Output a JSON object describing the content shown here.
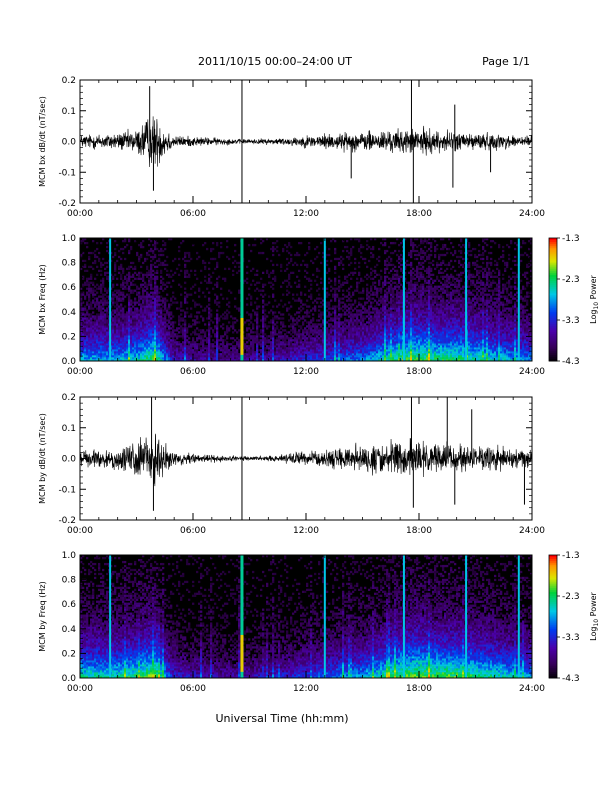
{
  "header": {
    "title": "2011/10/15  00:00–24:00 UT",
    "page": "Page 1/1"
  },
  "footer": {
    "xlabel": "Universal Time (hh:mm)"
  },
  "colors": {
    "trace": "#000000",
    "axis": "#000000",
    "background": "#ffffff"
  },
  "chart_data": [
    {
      "type": "line",
      "ylabel": "MCM bx dB/dt (nT/sec)",
      "x_tick_labels": [
        "00:00",
        "06:00",
        "12:00",
        "18:00",
        "24:00"
      ],
      "xlim_hours": [
        0,
        24
      ],
      "y_tick_labels": [
        "-0.2",
        "-0.1",
        "0.0",
        "0.1",
        "0.2"
      ],
      "ylim": [
        -0.2,
        0.2
      ],
      "x_unit": "hours UT",
      "envelope": {
        "hours": [
          0,
          1,
          2,
          3,
          3.5,
          4,
          4.5,
          5,
          6,
          7,
          8,
          8.5,
          9,
          10,
          11,
          12,
          13,
          14,
          15,
          16,
          17,
          17.5,
          18,
          19,
          20,
          21,
          22,
          23,
          24
        ],
        "amplitude": [
          0.035,
          0.04,
          0.045,
          0.06,
          0.12,
          0.14,
          0.08,
          0.03,
          0.025,
          0.02,
          0.015,
          0.012,
          0.012,
          0.015,
          0.02,
          0.03,
          0.04,
          0.045,
          0.05,
          0.055,
          0.06,
          0.06,
          0.07,
          0.055,
          0.05,
          0.045,
          0.04,
          0.035,
          0.03
        ]
      },
      "spikes": [
        {
          "hour": 3.7,
          "value": 0.18
        },
        {
          "hour": 3.9,
          "value": -0.16
        },
        {
          "hour": 8.6,
          "value": 0.2
        },
        {
          "hour": 8.6,
          "value": -0.2
        },
        {
          "hour": 14.4,
          "value": -0.12
        },
        {
          "hour": 17.6,
          "value": 0.2
        },
        {
          "hour": 17.7,
          "value": -0.2
        },
        {
          "hour": 19.8,
          "value": -0.15
        },
        {
          "hour": 19.9,
          "value": 0.12
        },
        {
          "hour": 21.8,
          "value": -0.1
        }
      ]
    },
    {
      "type": "heatmap",
      "ylabel": "MCM bx Freq (Hz)",
      "x_tick_labels": [
        "00:00",
        "06:00",
        "12:00",
        "18:00",
        "24:00"
      ],
      "xlim_hours": [
        0,
        24
      ],
      "y_tick_labels": [
        "0.0",
        "0.2",
        "0.4",
        "0.6",
        "0.8",
        "1.0"
      ],
      "ylim": [
        0,
        1.0
      ],
      "colorbar": {
        "label": "Log10 Power",
        "label_base": "Log",
        "label_sub": "10",
        "label_rest": " Power",
        "tick_labels": [
          "-1.3",
          "-2.3",
          "-3.3",
          "-4.3"
        ],
        "range": [
          -4.3,
          -1.3
        ]
      },
      "activity_hours": [
        0,
        2,
        3,
        4,
        4.5,
        5,
        6,
        8,
        10,
        12,
        14,
        15,
        16,
        17,
        18,
        19,
        20,
        21,
        22,
        23,
        24
      ],
      "activity_level": [
        0.55,
        0.55,
        0.6,
        0.75,
        0.5,
        0.3,
        0.25,
        0.2,
        0.25,
        0.35,
        0.45,
        0.5,
        0.6,
        0.7,
        0.75,
        0.7,
        0.7,
        0.65,
        0.6,
        0.55,
        0.5
      ],
      "vertical_lines_hours": [
        1.6,
        8.6,
        13.0,
        17.2,
        20.5,
        23.3
      ]
    },
    {
      "type": "line",
      "ylabel": "MCM by dB/dt (nT/sec)",
      "x_tick_labels": [
        "00:00",
        "06:00",
        "12:00",
        "18:00",
        "24:00"
      ],
      "xlim_hours": [
        0,
        24
      ],
      "y_tick_labels": [
        "-0.2",
        "-0.1",
        "0.0",
        "0.1",
        "0.2"
      ],
      "ylim": [
        -0.2,
        0.2
      ],
      "x_unit": "hours UT",
      "envelope": {
        "hours": [
          0,
          1,
          2,
          2.5,
          3,
          3.5,
          4,
          4.5,
          5,
          6,
          7,
          8,
          8.5,
          9,
          10,
          11,
          12,
          13,
          14,
          15,
          16,
          17,
          17.5,
          18,
          19,
          20,
          21,
          22,
          23,
          24
        ],
        "amplitude": [
          0.04,
          0.045,
          0.06,
          0.07,
          0.09,
          0.12,
          0.14,
          0.08,
          0.03,
          0.025,
          0.02,
          0.015,
          0.012,
          0.012,
          0.015,
          0.025,
          0.035,
          0.045,
          0.055,
          0.07,
          0.08,
          0.085,
          0.09,
          0.09,
          0.075,
          0.07,
          0.065,
          0.06,
          0.05,
          0.045
        ]
      },
      "spikes": [
        {
          "hour": 3.8,
          "value": 0.2
        },
        {
          "hour": 3.9,
          "value": -0.17
        },
        {
          "hour": 8.6,
          "value": 0.2
        },
        {
          "hour": 8.6,
          "value": -0.2
        },
        {
          "hour": 17.6,
          "value": 0.2
        },
        {
          "hour": 17.7,
          "value": -0.16
        },
        {
          "hour": 19.5,
          "value": 0.2
        },
        {
          "hour": 19.9,
          "value": -0.15
        },
        {
          "hour": 20.8,
          "value": 0.16
        },
        {
          "hour": 23.6,
          "value": -0.15
        }
      ]
    },
    {
      "type": "heatmap",
      "ylabel": "MCM by Freq (Hz)",
      "x_tick_labels": [
        "00:00",
        "06:00",
        "12:00",
        "18:00",
        "24:00"
      ],
      "xlim_hours": [
        0,
        24
      ],
      "y_tick_labels": [
        "0.0",
        "0.2",
        "0.4",
        "0.6",
        "0.8",
        "1.0"
      ],
      "ylim": [
        0,
        1.0
      ],
      "colorbar": {
        "label": "Log10 Power",
        "label_base": "Log",
        "label_sub": "10",
        "label_rest": " Power",
        "tick_labels": [
          "-1.3",
          "-2.3",
          "-3.3",
          "-4.3"
        ],
        "range": [
          -4.3,
          -1.3
        ]
      },
      "activity_hours": [
        0,
        2,
        3,
        4,
        4.5,
        5,
        6,
        8,
        10,
        12,
        14,
        15,
        16,
        17,
        18,
        19,
        20,
        21,
        22,
        23,
        24
      ],
      "activity_level": [
        0.65,
        0.65,
        0.7,
        0.8,
        0.55,
        0.35,
        0.3,
        0.25,
        0.3,
        0.4,
        0.5,
        0.55,
        0.65,
        0.75,
        0.8,
        0.75,
        0.75,
        0.7,
        0.65,
        0.6,
        0.55
      ],
      "vertical_lines_hours": [
        1.6,
        8.6,
        13.0,
        17.2,
        20.5,
        23.3
      ]
    }
  ]
}
